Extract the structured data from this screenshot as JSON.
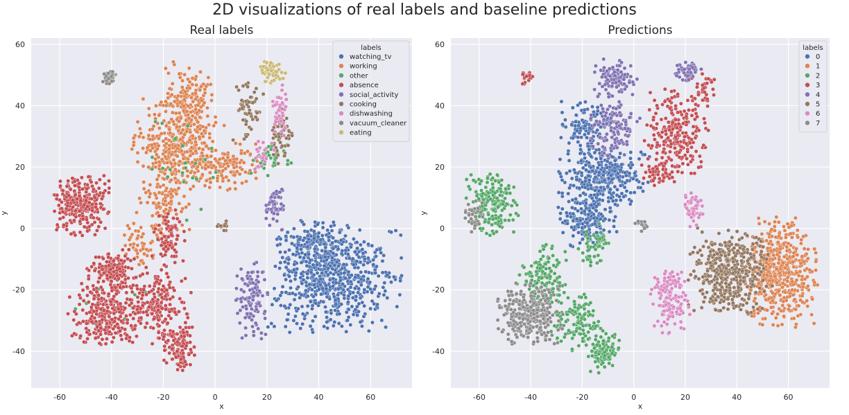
{
  "suptitle": "2D visualizations of real labels and baseline predictions",
  "chart_data": [
    {
      "type": "scatter",
      "title": "Real labels",
      "xlabel": "x",
      "ylabel": "y",
      "xlim": [
        -71,
        76
      ],
      "ylim": [
        -52,
        62
      ],
      "xticks": [
        -60,
        -40,
        -20,
        0,
        20,
        40,
        60
      ],
      "yticks": [
        -40,
        -20,
        0,
        20,
        40,
        60
      ],
      "grid": true,
      "legend": {
        "title": "labels",
        "placement": "top-right"
      },
      "series": [
        {
          "name": "watching_tv",
          "color": "#4c72b0",
          "clusters": [
            {
              "cx": 46,
              "cy": -16,
              "rx": 20,
              "ry": 14,
              "n": 650
            },
            {
              "cx": 38,
              "cy": -5,
              "rx": 12,
              "ry": 6,
              "n": 120
            }
          ]
        },
        {
          "name": "working",
          "color": "#dd8452",
          "clusters": [
            {
              "cx": -10,
              "cy": 42,
              "rx": 8,
              "ry": 10,
              "n": 160
            },
            {
              "cx": -14,
              "cy": 27,
              "rx": 14,
              "ry": 12,
              "n": 380
            },
            {
              "cx": -20,
              "cy": 8,
              "rx": 8,
              "ry": 12,
              "n": 110
            },
            {
              "cx": 6,
              "cy": 20,
              "rx": 10,
              "ry": 6,
              "n": 110
            },
            {
              "cx": -30,
              "cy": -5,
              "rx": 6,
              "ry": 8,
              "n": 45
            }
          ]
        },
        {
          "name": "other",
          "color": "#55a868",
          "clusters": [
            {
              "cx": 22,
              "cy": 23,
              "rx": 7,
              "ry": 5,
              "n": 35
            },
            {
              "cx": -10,
              "cy": 22,
              "rx": 14,
              "ry": 16,
              "n": 25
            },
            {
              "cx": -40,
              "cy": -25,
              "rx": 16,
              "ry": 14,
              "n": 15
            }
          ]
        },
        {
          "name": "absence",
          "color": "#c44e52",
          "clusters": [
            {
              "cx": -52,
              "cy": 8,
              "rx": 9,
              "ry": 8,
              "n": 260
            },
            {
              "cx": -40,
              "cy": -14,
              "rx": 8,
              "ry": 6,
              "n": 160
            },
            {
              "cx": -42,
              "cy": -28,
              "rx": 12,
              "ry": 8,
              "n": 270
            },
            {
              "cx": -22,
              "cy": -25,
              "rx": 10,
              "ry": 10,
              "n": 200
            },
            {
              "cx": -14,
              "cy": -39,
              "rx": 5,
              "ry": 6,
              "n": 110
            },
            {
              "cx": -18,
              "cy": -3,
              "rx": 5,
              "ry": 7,
              "n": 80
            }
          ]
        },
        {
          "name": "social_activity",
          "color": "#8172b3",
          "clusters": [
            {
              "cx": 14,
              "cy": -23,
              "rx": 5,
              "ry": 10,
              "n": 110
            },
            {
              "cx": 23,
              "cy": 7,
              "rx": 3,
              "ry": 6,
              "n": 55
            }
          ]
        },
        {
          "name": "cooking",
          "color": "#937860",
          "clusters": [
            {
              "cx": 13,
              "cy": 38,
              "rx": 5,
              "ry": 8,
              "n": 60
            },
            {
              "cx": 25,
              "cy": 30,
              "rx": 4,
              "ry": 7,
              "n": 55
            },
            {
              "cx": -41,
              "cy": 49,
              "rx": 1.6,
              "ry": 1.8,
              "n": 22
            },
            {
              "cx": 3,
              "cy": 1,
              "rx": 2,
              "ry": 1.5,
              "n": 12
            }
          ]
        },
        {
          "name": "dishwashing",
          "color": "#da8bc3",
          "clusters": [
            {
              "cx": 25,
              "cy": 38,
              "rx": 3,
              "ry": 7,
              "n": 40
            },
            {
              "cx": 18,
              "cy": 24,
              "rx": 4,
              "ry": 4,
              "n": 25
            }
          ]
        },
        {
          "name": "vacuum_cleaner",
          "color": "#8c8c8c",
          "clusters": [
            {
              "cx": -41,
              "cy": 49,
              "rx": 2,
              "ry": 2,
              "n": 30
            }
          ]
        },
        {
          "name": "eating",
          "color": "#ccb974",
          "clusters": [
            {
              "cx": 22,
              "cy": 51,
              "rx": 4,
              "ry": 3,
              "n": 55
            }
          ]
        }
      ]
    },
    {
      "type": "scatter",
      "title": "Predictions",
      "xlabel": "x",
      "ylabel": "y",
      "xlim": [
        -71,
        76
      ],
      "ylim": [
        -52,
        62
      ],
      "xticks": [
        -60,
        -40,
        -20,
        0,
        20,
        40,
        60
      ],
      "yticks": [
        -40,
        -20,
        0,
        20,
        40,
        60
      ],
      "grid": true,
      "legend": {
        "title": "labels",
        "placement": "top-right"
      },
      "series": [
        {
          "name": "0",
          "color": "#4c72b0",
          "clusters": [
            {
              "cx": -18,
              "cy": 33,
              "rx": 8,
              "ry": 7,
              "n": 120
            },
            {
              "cx": -12,
              "cy": 17,
              "rx": 14,
              "ry": 8,
              "n": 320
            },
            {
              "cx": -18,
              "cy": 3,
              "rx": 9,
              "ry": 8,
              "n": 180
            }
          ]
        },
        {
          "name": "1",
          "color": "#dd8452",
          "clusters": [
            {
              "cx": 57,
              "cy": -14,
              "rx": 11,
              "ry": 14,
              "n": 520
            }
          ]
        },
        {
          "name": "2",
          "color": "#55a868",
          "clusters": [
            {
              "cx": -55,
              "cy": 8,
              "rx": 8,
              "ry": 8,
              "n": 200
            },
            {
              "cx": -35,
              "cy": -15,
              "rx": 8,
              "ry": 8,
              "n": 120
            },
            {
              "cx": -22,
              "cy": -30,
              "rx": 8,
              "ry": 8,
              "n": 120
            },
            {
              "cx": -12,
              "cy": -40,
              "rx": 5,
              "ry": 6,
              "n": 110
            },
            {
              "cx": -15,
              "cy": -5,
              "rx": 5,
              "ry": 6,
              "n": 60
            }
          ]
        },
        {
          "name": "3",
          "color": "#c44e52",
          "clusters": [
            {
              "cx": 16,
              "cy": 30,
              "rx": 10,
              "ry": 12,
              "n": 240
            },
            {
              "cx": 27,
              "cy": 46,
              "rx": 4,
              "ry": 5,
              "n": 35
            },
            {
              "cx": -41,
              "cy": 49,
              "rx": 2,
              "ry": 2,
              "n": 25
            },
            {
              "cx": 10,
              "cy": 18,
              "rx": 6,
              "ry": 4,
              "n": 45
            }
          ]
        },
        {
          "name": "4",
          "color": "#8172b3",
          "clusters": [
            {
              "cx": -7,
              "cy": 49,
              "rx": 7,
              "ry": 5,
              "n": 100
            },
            {
              "cx": -8,
              "cy": 33,
              "rx": 8,
              "ry": 8,
              "n": 130
            },
            {
              "cx": 21,
              "cy": 51,
              "rx": 4,
              "ry": 3,
              "n": 45
            }
          ]
        },
        {
          "name": "5",
          "color": "#937860",
          "clusters": [
            {
              "cx": 37,
              "cy": -14,
              "rx": 13,
              "ry": 11,
              "n": 450
            }
          ]
        },
        {
          "name": "6",
          "color": "#da8bc3",
          "clusters": [
            {
              "cx": 14,
              "cy": -23,
              "rx": 6,
              "ry": 9,
              "n": 140
            },
            {
              "cx": 23,
              "cy": 7,
              "rx": 3,
              "ry": 5,
              "n": 55
            }
          ]
        },
        {
          "name": "7",
          "color": "#8c8c8c",
          "clusters": [
            {
              "cx": -40,
              "cy": -28,
              "rx": 10,
              "ry": 8,
              "n": 300
            },
            {
              "cx": -62,
              "cy": 3,
              "rx": 3,
              "ry": 5,
              "n": 30
            },
            {
              "cx": 3,
              "cy": 1,
              "rx": 2,
              "ry": 1.5,
              "n": 12
            }
          ]
        }
      ]
    }
  ]
}
